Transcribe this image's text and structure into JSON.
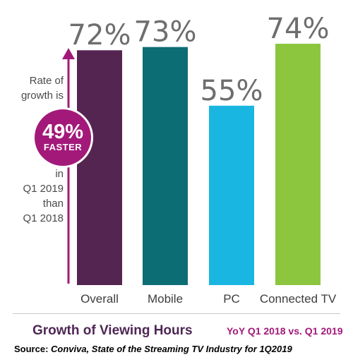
{
  "chart_data": {
    "type": "bar",
    "categories": [
      "Overall",
      "Mobile",
      "PC",
      "Connected TV"
    ],
    "values": [
      72,
      73,
      55,
      74
    ],
    "value_labels": [
      "72%",
      "73%",
      "55%",
      "74%"
    ],
    "colors": [
      "#552552",
      "#0d6d74",
      "#18b6e0",
      "#8cc63f"
    ],
    "ylim": [
      0,
      74
    ],
    "grid": false,
    "legend": "none"
  },
  "annotation": {
    "text_top": [
      "Rate of",
      "growth is"
    ],
    "badge_big": "49%",
    "badge_small": "FASTER",
    "text_bottom": [
      "in",
      "Q1 2019",
      "than",
      "Q1 2018"
    ],
    "arrow_color": "#a3197a",
    "badge_color": "#a3197a"
  },
  "footer": {
    "title": "Growth of Viewing Hours",
    "subtitle": "YoY Q1 2018 vs. Q1 2019",
    "source_prefix": "Source: ",
    "source_text": "Conviva, State of the Streaming TV Industry for 1Q2019"
  }
}
